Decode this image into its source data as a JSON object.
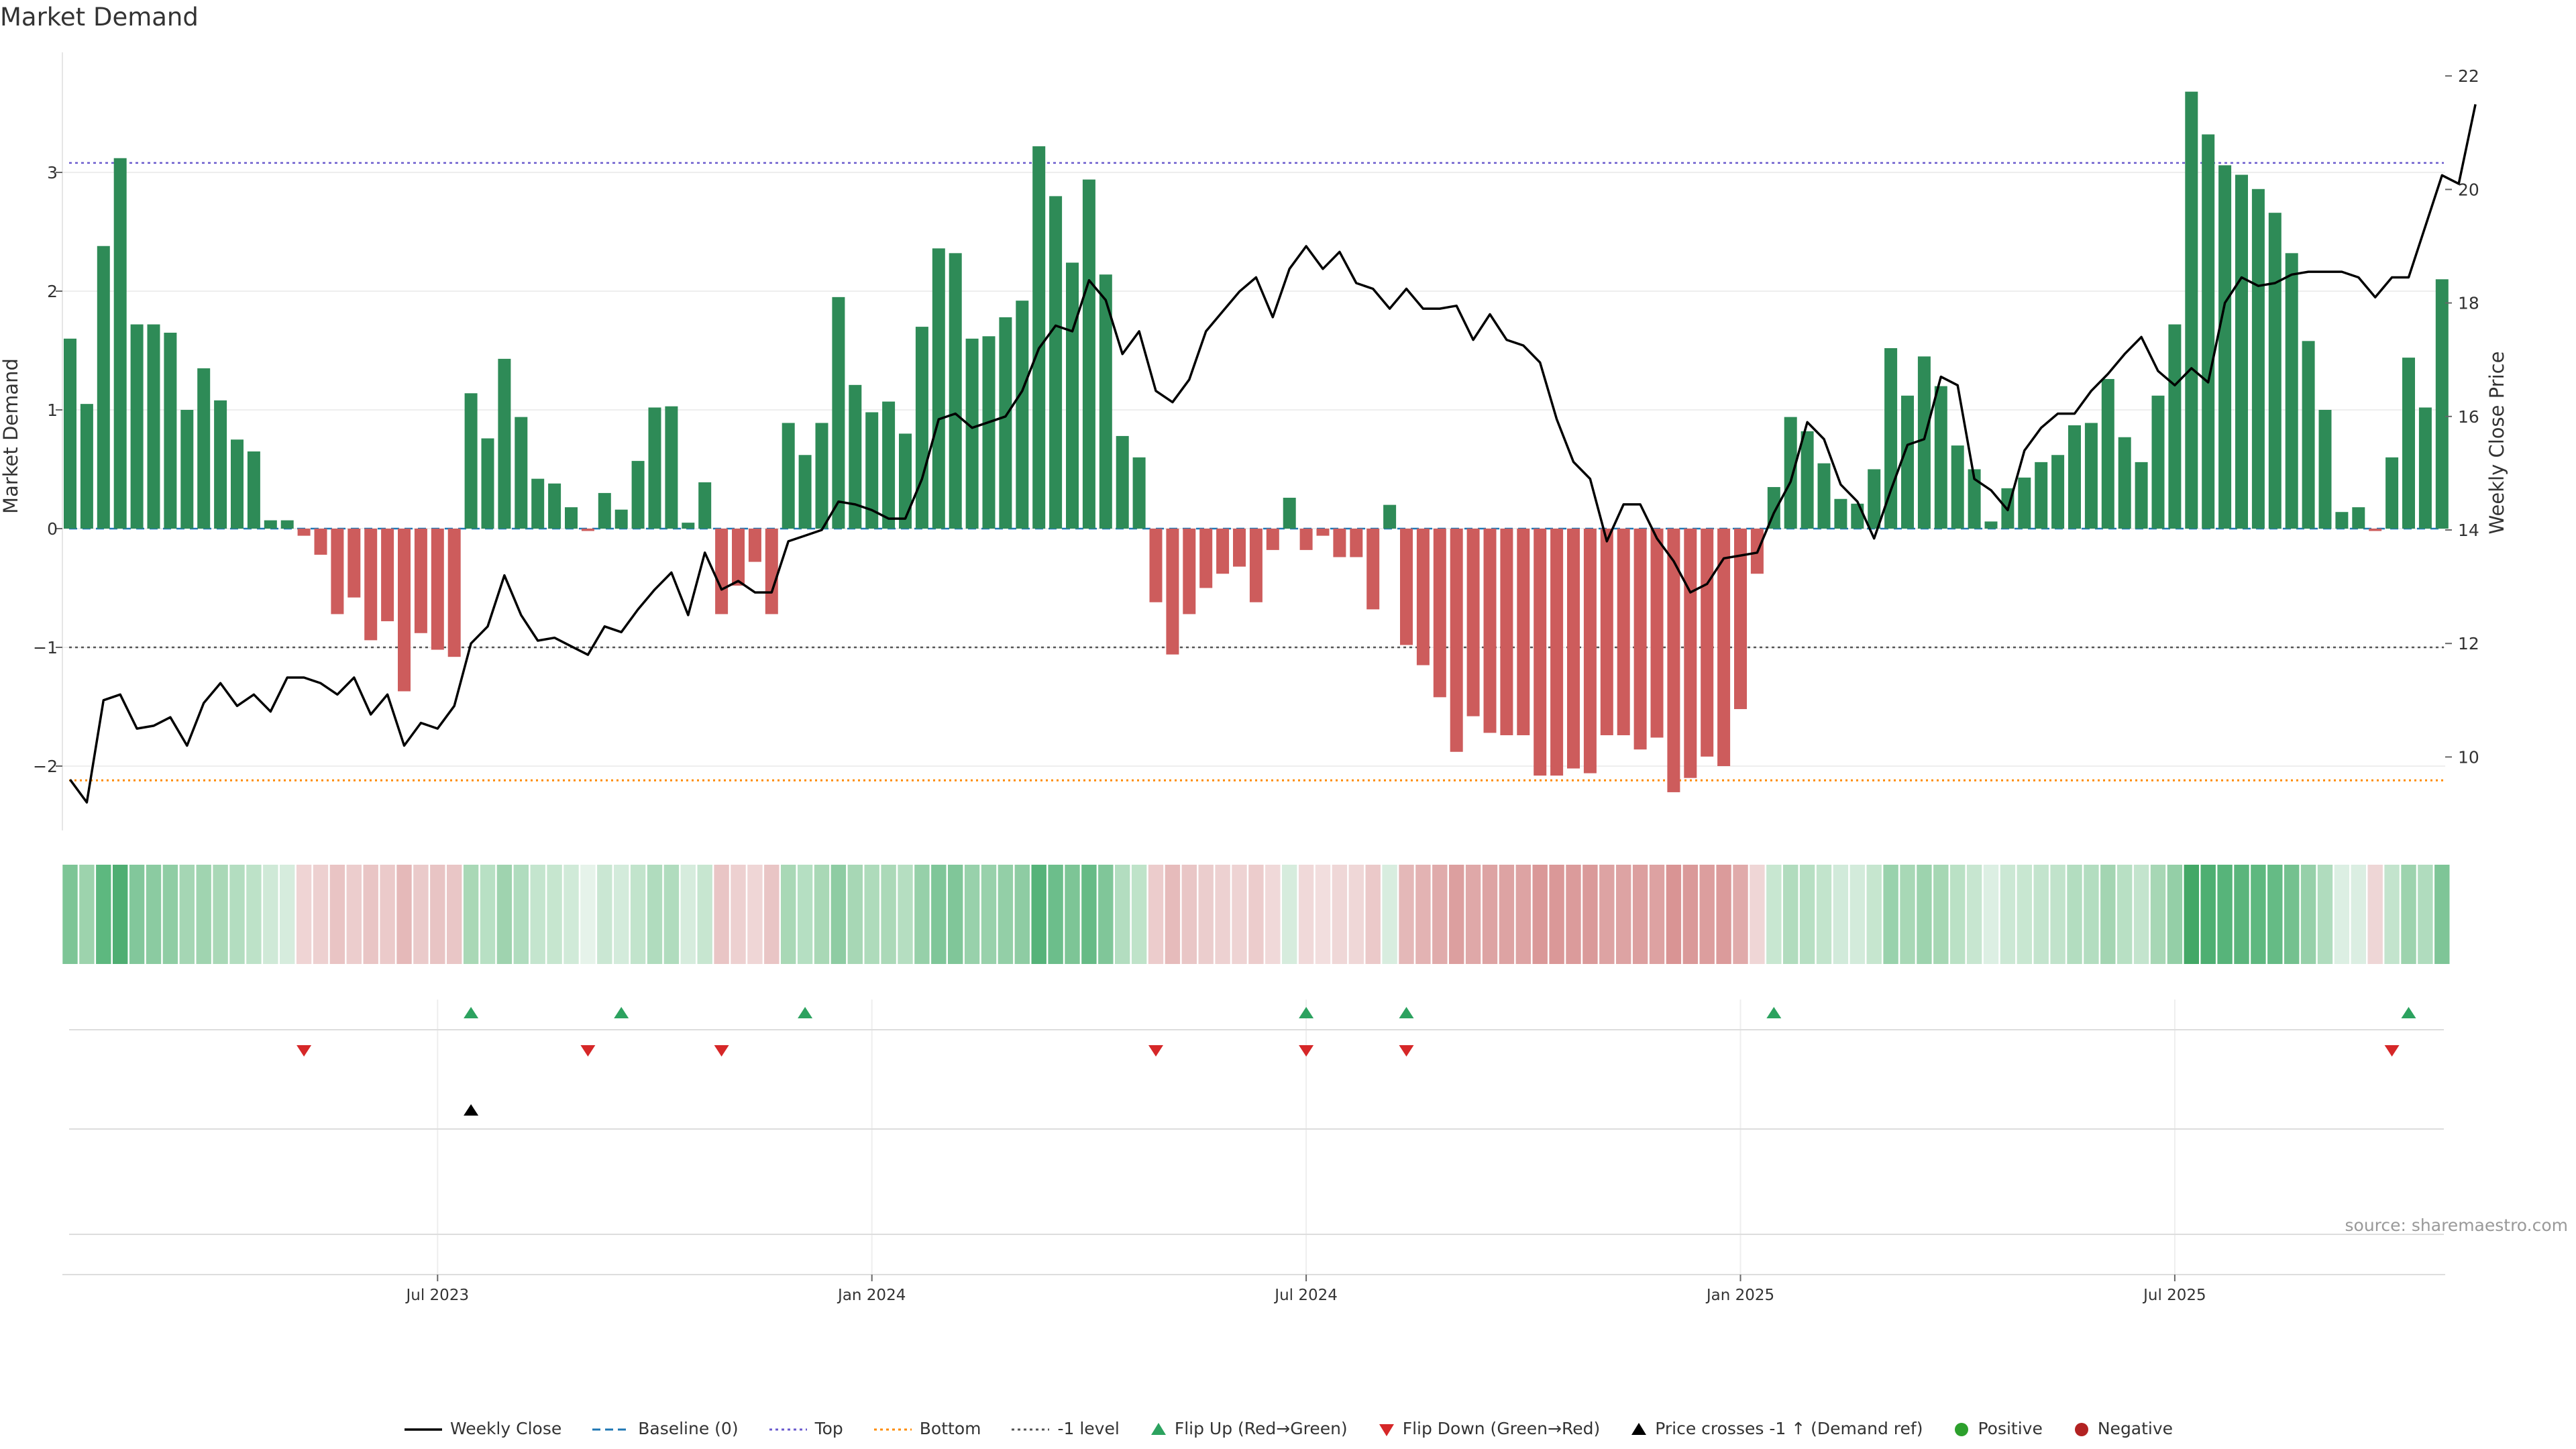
{
  "title": "Market Demand",
  "source": "source: sharemaestro.com",
  "chart_data": {
    "type": "bar",
    "title": "Market Demand",
    "ylabel": "Market Demand",
    "y2label": "Weekly Close Price",
    "ylim": [
      -2.55,
      3.95
    ],
    "y2lim": [
      8.2,
      22.4
    ],
    "yticks": [
      -2,
      -1,
      0,
      1,
      2,
      3
    ],
    "y2ticks": [
      10,
      12,
      14,
      16,
      18,
      20,
      22
    ],
    "hlines": {
      "top": 3.08,
      "bottom": -2.12,
      "minus_one": -1.0,
      "baseline": 0
    },
    "xticks": [
      {
        "label": "Jul 2023",
        "index": 22
      },
      {
        "label": "Jan 2024",
        "index": 48
      },
      {
        "label": "Jul 2024",
        "index": 74
      },
      {
        "label": "Jan 2025",
        "index": 100
      },
      {
        "label": "Jul 2025",
        "index": 126
      }
    ],
    "demand": [
      1.6,
      1.05,
      2.38,
      3.12,
      1.72,
      1.72,
      1.65,
      1.0,
      1.35,
      1.08,
      0.75,
      0.65,
      0.07,
      0.07,
      -0.06,
      -0.22,
      -0.72,
      -0.58,
      -0.94,
      -0.78,
      -1.37,
      -0.88,
      -1.02,
      -1.08,
      1.14,
      0.76,
      1.43,
      0.94,
      0.42,
      0.38,
      0.18,
      -0.02,
      0.3,
      0.16,
      0.57,
      1.02,
      1.03,
      0.05,
      0.39,
      -0.72,
      -0.48,
      -0.28,
      -0.72,
      0.89,
      0.62,
      0.89,
      1.95,
      1.21,
      0.98,
      1.07,
      0.8,
      1.7,
      2.36,
      2.32,
      1.6,
      1.62,
      1.78,
      1.92,
      3.22,
      2.8,
      2.24,
      2.94,
      2.14,
      0.78,
      0.6,
      -0.62,
      -1.06,
      -0.72,
      -0.5,
      -0.38,
      -0.32,
      -0.62,
      -0.18,
      0.26,
      -0.18,
      -0.06,
      -0.24,
      -0.24,
      -0.68,
      0.2,
      -0.98,
      -1.15,
      -1.42,
      -1.88,
      -1.58,
      -1.72,
      -1.74,
      -1.74,
      -2.08,
      -2.08,
      -2.02,
      -2.06,
      -1.74,
      -1.74,
      -1.86,
      -1.76,
      -2.22,
      -2.1,
      -1.92,
      -2.0,
      -1.52,
      -0.38,
      0.35,
      0.94,
      0.82,
      0.55,
      0.25,
      0.21,
      0.5,
      1.52,
      1.12,
      1.45,
      1.2,
      0.7,
      0.5,
      0.06,
      0.34,
      0.43,
      0.56,
      0.62,
      0.87,
      0.89,
      1.26,
      0.77,
      0.56,
      1.12,
      1.72,
      3.68,
      3.32,
      3.06,
      2.98,
      2.86,
      2.66,
      2.32,
      1.58,
      1.0,
      0.14,
      0.18,
      -0.02,
      0.6,
      1.44,
      1.02,
      2.1
    ],
    "weekly_close": [
      9.6,
      9.2,
      11.0,
      11.1,
      10.5,
      10.55,
      10.7,
      10.2,
      10.95,
      11.3,
      10.9,
      11.1,
      10.8,
      11.4,
      11.4,
      11.3,
      11.1,
      11.4,
      10.75,
      11.1,
      10.2,
      10.6,
      10.5,
      10.9,
      12.0,
      12.3,
      13.2,
      12.5,
      12.05,
      12.1,
      11.95,
      11.8,
      12.3,
      12.2,
      12.6,
      12.95,
      13.25,
      12.5,
      13.6,
      12.95,
      13.1,
      12.9,
      12.9,
      13.8,
      13.9,
      14.0,
      14.5,
      14.45,
      14.35,
      14.2,
      14.2,
      14.9,
      15.95,
      16.05,
      15.8,
      15.9,
      16.0,
      16.45,
      17.2,
      17.6,
      17.5,
      18.4,
      18.05,
      17.1,
      17.5,
      16.45,
      16.25,
      16.65,
      17.5,
      17.85,
      18.2,
      18.45,
      17.75,
      18.6,
      19.0,
      18.6,
      18.9,
      18.35,
      18.25,
      17.9,
      18.25,
      17.9,
      17.9,
      17.95,
      17.35,
      17.8,
      17.35,
      17.25,
      16.95,
      15.95,
      15.2,
      14.9,
      13.8,
      14.45,
      14.45,
      13.85,
      13.45,
      12.9,
      13.05,
      13.5,
      13.55,
      13.6,
      14.3,
      14.85,
      15.9,
      15.6,
      14.8,
      14.5,
      13.85,
      14.7,
      15.5,
      15.6,
      16.7,
      16.55,
      14.9,
      14.7,
      14.35,
      15.4,
      15.8,
      16.05,
      16.05,
      16.45,
      16.75,
      17.1,
      17.4,
      16.8,
      16.55,
      16.85,
      16.6,
      18.0,
      18.45,
      18.3,
      18.35,
      18.5,
      18.55,
      18.55,
      18.55,
      18.45,
      18.1,
      18.45,
      18.45,
      19.35,
      20.25,
      20.1,
      21.5
    ],
    "heat_colors": [
      "#7dc596",
      "#9dd3ad",
      "#5db87f",
      "#4fae72",
      "#82c79b",
      "#8bcba1",
      "#8fcda4",
      "#a5d6b4",
      "#a0d4b0",
      "#a9d8b7",
      "#b3ddc0",
      "#bde2c8",
      "#cfe9d7",
      "#d6ecdd",
      "#efd4d4",
      "#edd0d0",
      "#e9c4c4",
      "#eccdcd",
      "#e9c5c5",
      "#ebcaca",
      "#e5b9b9",
      "#eacaca",
      "#e8c4c4",
      "#e9c6c6",
      "#a9d8b6",
      "#b8e0c4",
      "#9fd3af",
      "#b0dcbe",
      "#c4e5ce",
      "#c6e6cf",
      "#d0ead8",
      "#e6f3ea",
      "#cae7d3",
      "#d3ebdb",
      "#c2e4cc",
      "#b0dcbe",
      "#b0dcbe",
      "#d6ecdd",
      "#c7e6d0",
      "#e9c5c5",
      "#edd0d0",
      "#efd6d6",
      "#e9c5c5",
      "#a9d8b6",
      "#b5dfc2",
      "#a9d8b6",
      "#8ecca3",
      "#a7d7b5",
      "#aedbbb",
      "#abd9b8",
      "#b5dec1",
      "#96d0a9",
      "#7fc699",
      "#80c699",
      "#98d1ab",
      "#98d1ab",
      "#93cfa7",
      "#8ecca3",
      "#55b379",
      "#6cbe8b",
      "#7dc596",
      "#66bb86",
      "#80c699",
      "#b3ddc0",
      "#bfe3c9",
      "#ecccccc",
      "#e6bbbb",
      "#e9c6c6",
      "#ebcdcd",
      "#edd1d1",
      "#eed3d3",
      "#ecccccc",
      "#f0d9d9",
      "#d6ecdd",
      "#f0d9d9",
      "#f2dede",
      "#efd7d7",
      "#efd7d7",
      "#ebc9c9",
      "#d8eddf",
      "#e4b8b8",
      "#e3b3b3",
      "#e0abab",
      "#dc9f9f",
      "#dfa8a8",
      "#dda3a3",
      "#dda3a3",
      "#dda3a3",
      "#da9898",
      "#da9898",
      "#db9b9b",
      "#da9a9a",
      "#dda3a3",
      "#dda3a3",
      "#dc9f9f",
      "#dda2a2",
      "#d99494",
      "#da9999",
      "#dc9e9e",
      "#db9b9b",
      "#e0aaaa",
      "#efd6d6",
      "#c8e7d1",
      "#b1dcbe",
      "#b7dfc3",
      "#c2e4cc",
      "#d1eada",
      "#d3ebdb",
      "#c6e6cf",
      "#99d2ac",
      "#a8d8b6",
      "#9dd3ae",
      "#a6d7b4",
      "#bae1c5",
      "#c7e6d0",
      "#dcefe3",
      "#cbe8d4",
      "#c8e7d1",
      "#c3e4cd",
      "#c1e3cb",
      "#b3ddc0",
      "#b3ddc0",
      "#a3d5b2",
      "#b8e0c4",
      "#c3e4cd",
      "#a7d7b5",
      "#94cfa7",
      "#43a866",
      "#4eaf72",
      "#57b47a",
      "#5ab57c",
      "#5eb87f",
      "#65bb85",
      "#74c18f",
      "#96d0a9",
      "#b0dcbe",
      "#dcefe3",
      "#dbeee2",
      "#eed6d6",
      "#c3e4cd",
      "#9dd3ae",
      "#b0dcbe",
      "#7ec597"
    ],
    "signal_rows": [
      {
        "name": "Flip Up (Red→Green)",
        "marker": "triangle-up",
        "color": "#2ca25f",
        "indices": [
          24,
          33,
          44,
          74,
          80,
          102,
          140
        ]
      },
      {
        "name": "Flip Down (Green→Red)",
        "marker": "triangle-down",
        "color": "#d62728",
        "indices": [
          14,
          31,
          39,
          65,
          74,
          80,
          139
        ]
      },
      {
        "name": "Price crosses -1 ↑ (Demand ref)",
        "marker": "triangle-up",
        "color": "#000000",
        "indices": [
          24
        ]
      },
      {
        "name": "Positive/Negative",
        "marker": "circle",
        "color": "",
        "indices": []
      }
    ],
    "colors": {
      "positive_bar": "#2e8b57",
      "negative_bar": "#cd5c5c",
      "line": "#000000",
      "top": "#6a5acd",
      "bottom": "#ff8c00",
      "minus_one": "#555555",
      "baseline": "#1f77b4",
      "flip_up": "#2ca25f",
      "flip_down": "#d62728",
      "positive_dot": "#2ca02c",
      "negative_dot": "#b22222"
    }
  },
  "legend": [
    {
      "label": "Weekly Close",
      "icon": "line-solid",
      "color": "#000000"
    },
    {
      "label": "Baseline (0)",
      "icon": "line-dashed",
      "color": "#1f77b4"
    },
    {
      "label": "Top",
      "icon": "line-dotted",
      "color": "#6a5acd"
    },
    {
      "label": "Bottom",
      "icon": "line-dotted",
      "color": "#ff8c00"
    },
    {
      "label": "-1 level",
      "icon": "line-dotted",
      "color": "#555555"
    },
    {
      "label": "Flip Up (Red→Green)",
      "icon": "triangle-up",
      "color": "#2ca25f"
    },
    {
      "label": "Flip Down (Green→Red)",
      "icon": "triangle-down",
      "color": "#d62728"
    },
    {
      "label": "Price crosses -1 ↑ (Demand ref)",
      "icon": "triangle-up",
      "color": "#000000"
    },
    {
      "label": "Positive",
      "icon": "circle",
      "color": "#2ca02c"
    },
    {
      "label": "Negative",
      "icon": "circle",
      "color": "#b22222"
    }
  ]
}
